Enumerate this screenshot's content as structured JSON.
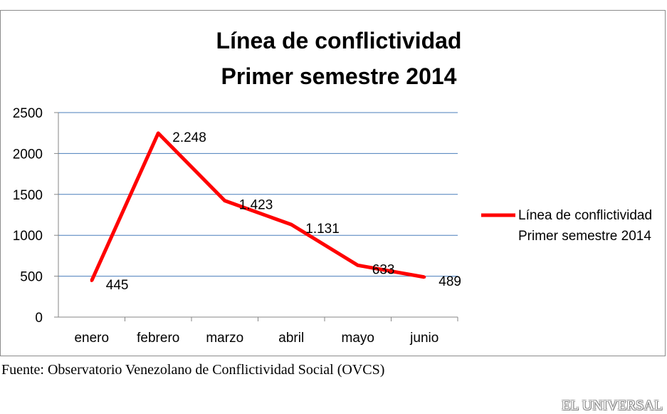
{
  "chart_data": {
    "type": "line",
    "title": [
      "Línea de conflictividad",
      "Primer semestre 2014"
    ],
    "categories": [
      "enero",
      "febrero",
      "marzo",
      "abril",
      "mayo",
      "junio"
    ],
    "series": [
      {
        "name": [
          "Línea de conflictividad",
          "Primer semestre 2014"
        ],
        "values": [
          445,
          2248,
          1423,
          1131,
          633,
          489
        ],
        "labels": [
          "445",
          "2.248",
          "1.423",
          "1.131",
          "633",
          "489"
        ],
        "color": "#ff0000"
      }
    ],
    "ylim": [
      0,
      2500
    ],
    "yticks": [
      0,
      500,
      1000,
      1500,
      2000,
      2500
    ],
    "grid": true,
    "legend": "right",
    "xlabel": "",
    "ylabel": ""
  },
  "source": "Fuente: Observatorio Venezolano de Conflictividad Social (OVCS)",
  "logo": "EL UNIVERSAL"
}
